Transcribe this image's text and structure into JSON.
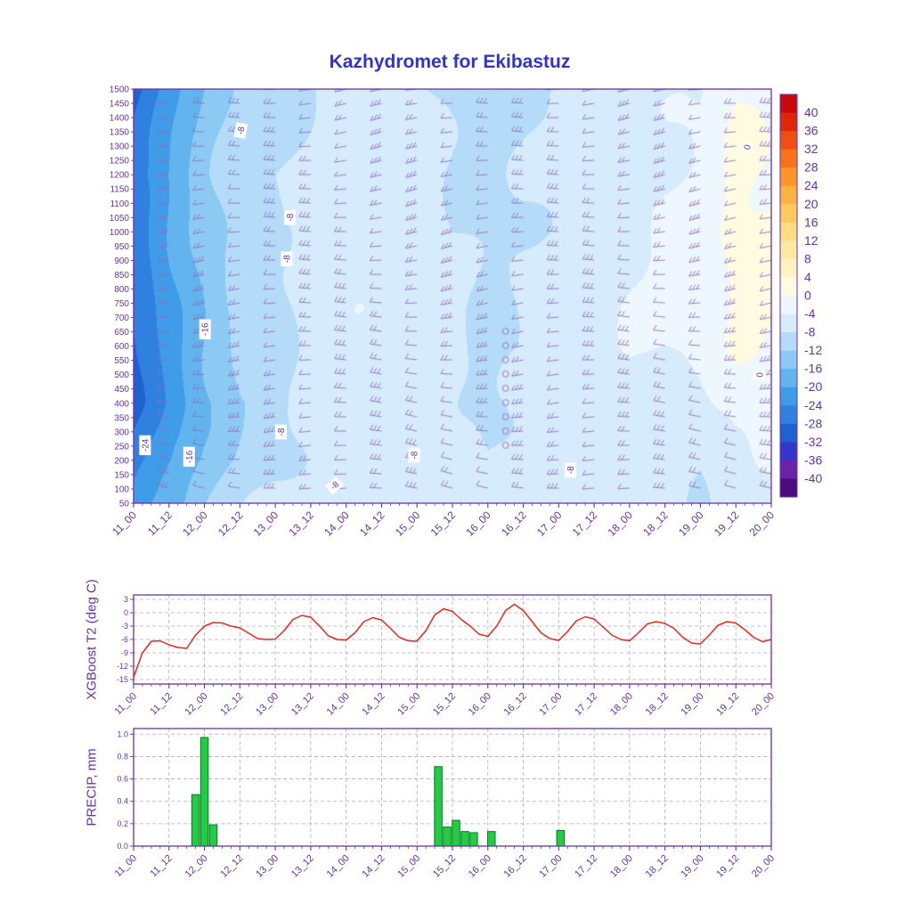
{
  "title": "Kazhydromet for Ekibastuz",
  "colors": {
    "title": "#3333cc",
    "axis": "#6633aa",
    "frame": "#6633aa",
    "barb": "#9070c0",
    "grid": "#b5a8cc",
    "t2_line": "#e8281e",
    "precip_fill": "#22cc44",
    "precip_edge": "#0a7a1e",
    "contour_label_bg": "#ffffff"
  },
  "x_ticklabels": [
    "11_00",
    "11_12",
    "12_00",
    "12_12",
    "13_00",
    "13_12",
    "14_00",
    "14_12",
    "15_00",
    "15_12",
    "16_00",
    "16_12",
    "17_00",
    "17_12",
    "18_00",
    "18_12",
    "19_00",
    "19_12",
    "20_00"
  ],
  "chart_data": [
    {
      "type": "heatmap",
      "name": "temperature-wind-time-height-cross-section",
      "y_ticklabels": [
        1500,
        1450,
        1400,
        1350,
        1300,
        1250,
        1200,
        1150,
        1100,
        1050,
        1000,
        950,
        900,
        850,
        800,
        750,
        700,
        650,
        600,
        550,
        500,
        450,
        400,
        350,
        300,
        250,
        200,
        150,
        100,
        50
      ],
      "levels_sampled": [
        50,
        200,
        400,
        600,
        800,
        1000,
        1200,
        1500
      ],
      "temperature_grid_by_time": [
        [
          -22,
          -26,
          -29,
          -29,
          -28,
          -27,
          -26,
          -30
        ],
        [
          -18,
          -21,
          -23,
          -22,
          -21,
          -20,
          -19,
          -22
        ],
        [
          -12,
          -15,
          -17,
          -16,
          -15,
          -14,
          -13,
          -15
        ],
        [
          -9,
          -11,
          -12,
          -11,
          -10,
          -10,
          -9,
          -11
        ],
        [
          -7,
          -9,
          -10,
          -9,
          -9,
          -9,
          -8,
          -10
        ],
        [
          -6,
          -7,
          -7,
          -7,
          -6,
          -7,
          -7,
          -8
        ],
        [
          -6,
          -6,
          -6,
          -5,
          -5,
          -6,
          -6,
          -7
        ],
        [
          -5,
          -5,
          -5,
          -4,
          -4,
          -5,
          -5,
          -6
        ],
        [
          -7,
          -7,
          -6,
          -5,
          -5,
          -5,
          -6,
          -7
        ],
        [
          -5,
          -7,
          -7,
          -7,
          -7,
          -8,
          -8,
          -9
        ],
        [
          -6,
          -8,
          -9,
          -9,
          -9,
          -9,
          -9,
          -10
        ],
        [
          -5,
          -6,
          -8,
          -8,
          -7,
          -8,
          -8,
          -9
        ],
        [
          -7,
          -7,
          -7,
          -6,
          -6,
          -7,
          -7,
          -8
        ],
        [
          -5,
          -5,
          -5,
          -5,
          -5,
          -6,
          -6,
          -7
        ],
        [
          -7,
          -6,
          -5,
          -4,
          -4,
          -5,
          -5,
          -6
        ],
        [
          -6,
          -7,
          -6,
          -4,
          -3,
          -3,
          -4,
          -5
        ],
        [
          -8,
          -8,
          -5,
          -3,
          -2,
          -2,
          -3,
          -4
        ],
        [
          -6,
          -5,
          -2,
          0,
          1,
          1,
          1,
          0
        ],
        [
          -7,
          -4,
          -1,
          0,
          1,
          1,
          0,
          -1
        ]
      ],
      "contour_label_values": [
        -24,
        -16,
        -8,
        0
      ],
      "contour_labels": [
        {
          "text": "-8",
          "fx": 0.168,
          "fy": 0.1,
          "rot": -80
        },
        {
          "text": "-8",
          "fx": 0.245,
          "fy": 0.31,
          "rot": -90
        },
        {
          "text": "-8",
          "fx": 0.24,
          "fy": 0.41,
          "rot": -90
        },
        {
          "text": "-16",
          "fx": 0.112,
          "fy": 0.58,
          "rot": -90
        },
        {
          "text": "-24",
          "fx": 0.018,
          "fy": 0.86,
          "rot": -90
        },
        {
          "text": "-16",
          "fx": 0.087,
          "fy": 0.888,
          "rot": -90
        },
        {
          "text": "-8",
          "fx": 0.231,
          "fy": 0.828,
          "rot": -90
        },
        {
          "text": "-8",
          "fx": 0.44,
          "fy": 0.884,
          "rot": -90
        },
        {
          "text": "-8",
          "fx": 0.315,
          "fy": 0.957,
          "rot": -40
        },
        {
          "text": "-8",
          "fx": 0.685,
          "fy": 0.92,
          "rot": -90
        },
        {
          "text": "0",
          "fx": 0.962,
          "fy": 0.14,
          "rot": -75
        },
        {
          "text": "0",
          "fx": 0.982,
          "fy": 0.69,
          "rot": -90
        }
      ],
      "calm_circles": {
        "t": 10.5,
        "levels": [
          250,
          300,
          350,
          400,
          450,
          500,
          550,
          600,
          650
        ]
      },
      "wind_barbs": {
        "t_step": 1,
        "level_min": 100,
        "level_max": 1500,
        "level_step": 50,
        "style": "mostly westerly barbs"
      },
      "colorbar": {
        "ticks": [
          40,
          36,
          32,
          28,
          24,
          20,
          16,
          12,
          8,
          4,
          0,
          -4,
          -8,
          -12,
          -16,
          -20,
          -24,
          -28,
          -32,
          -36,
          -40
        ],
        "band_step": 4,
        "colors_cold_to_warm": [
          "#4a0c7c",
          "#6b21a8",
          "#3535cc",
          "#1e62d0",
          "#2f80df",
          "#3f9ce8",
          "#62b4ee",
          "#8ccaf4",
          "#b4dcf8",
          "#d6ebfb",
          "#eef7fd",
          "#fffbe0",
          "#fff3c0",
          "#ffe9a0",
          "#ffdc80",
          "#ffc95e",
          "#ffb240",
          "#ff9428",
          "#f97218",
          "#ef4f0f",
          "#e02508",
          "#c80a0a"
        ]
      }
    },
    {
      "type": "line",
      "ylabel": "XGBoost T2 (deg C)",
      "y_ticks": [
        3,
        0,
        -3,
        -6,
        -9,
        -12,
        -15
      ],
      "ylim": [
        -16,
        4
      ],
      "time_step_hours": 3,
      "values": [
        -14.5,
        -9.0,
        -6.4,
        -6.3,
        -7.2,
        -7.8,
        -8.0,
        -5.0,
        -3.0,
        -2.2,
        -2.3,
        -3.0,
        -3.4,
        -4.6,
        -5.8,
        -6.0,
        -5.9,
        -4.0,
        -1.5,
        -0.6,
        -1.0,
        -3.0,
        -5.2,
        -6.0,
        -6.1,
        -4.5,
        -2.0,
        -1.1,
        -1.6,
        -3.5,
        -5.5,
        -6.3,
        -6.4,
        -4.0,
        -0.5,
        0.9,
        0.3,
        -1.5,
        -3.0,
        -4.8,
        -5.3,
        -3.0,
        0.5,
        1.9,
        0.5,
        -2.0,
        -4.5,
        -5.8,
        -6.2,
        -4.2,
        -1.8,
        -0.9,
        -1.4,
        -3.2,
        -5.0,
        -6.0,
        -6.3,
        -4.5,
        -2.5,
        -2.0,
        -2.4,
        -3.5,
        -5.5,
        -6.8,
        -7.0,
        -5.0,
        -2.8,
        -2.0,
        -2.3,
        -3.8,
        -5.5,
        -6.5,
        -6.0
      ]
    },
    {
      "type": "bar",
      "ylabel": "PRECIP, mm",
      "y_ticklabels": [
        "0.0",
        "0.2",
        "0.4",
        "0.6",
        "0.8",
        "1.0"
      ],
      "ylim": [
        0,
        1.05
      ],
      "bars": [
        {
          "t": 1.75,
          "v": 0.46
        },
        {
          "t": 2.0,
          "v": 0.97
        },
        {
          "t": 2.25,
          "v": 0.19
        },
        {
          "t": 8.6,
          "v": 0.71
        },
        {
          "t": 8.85,
          "v": 0.17
        },
        {
          "t": 9.1,
          "v": 0.23
        },
        {
          "t": 9.35,
          "v": 0.13
        },
        {
          "t": 9.6,
          "v": 0.12
        },
        {
          "t": 10.1,
          "v": 0.13
        },
        {
          "t": 12.05,
          "v": 0.14
        }
      ]
    }
  ]
}
